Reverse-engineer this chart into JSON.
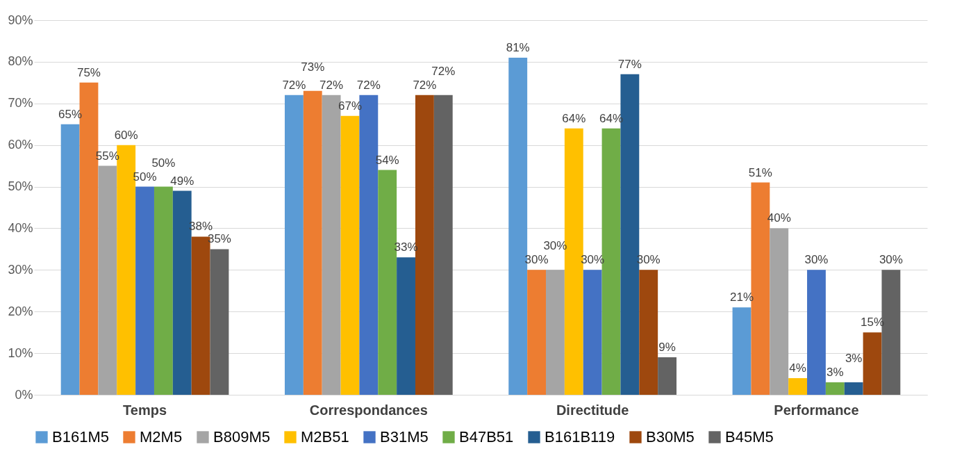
{
  "chart_data": {
    "type": "bar",
    "categories": [
      "Temps",
      "Correspondances",
      "Directitude",
      "Performance"
    ],
    "ylim": [
      0,
      90
    ],
    "yticks": [
      {
        "value": 0,
        "label": "0%"
      },
      {
        "value": 10,
        "label": "10%"
      },
      {
        "value": 20,
        "label": "20%"
      },
      {
        "value": 30,
        "label": "30%"
      },
      {
        "value": 40,
        "label": "40%"
      },
      {
        "value": 50,
        "label": "50%"
      },
      {
        "value": 60,
        "label": "60%"
      },
      {
        "value": 70,
        "label": "70%"
      },
      {
        "value": 80,
        "label": "80%"
      },
      {
        "value": 90,
        "label": "90%"
      }
    ],
    "grid": "y",
    "legend": "bottom",
    "series": [
      {
        "name": "B161M5",
        "color": "#5b9bd5",
        "values": [
          65,
          72,
          81,
          21
        ],
        "value_labels": [
          "65%",
          "72%",
          "81%",
          "21%"
        ]
      },
      {
        "name": "M2M5",
        "color": "#ed7d31",
        "values": [
          75,
          73,
          30,
          51
        ],
        "value_labels": [
          "75%",
          "73%",
          "30%",
          "51%"
        ]
      },
      {
        "name": "B809M5",
        "color": "#a5a5a5",
        "values": [
          55,
          72,
          30,
          40
        ],
        "value_labels": [
          "55%",
          "72%",
          "30%",
          "40%"
        ]
      },
      {
        "name": "M2B51",
        "color": "#ffc000",
        "values": [
          60,
          67,
          64,
          4
        ],
        "value_labels": [
          "60%",
          "67%",
          "64%",
          "4%"
        ]
      },
      {
        "name": "B31M5",
        "color": "#4472c4",
        "values": [
          50,
          72,
          30,
          30
        ],
        "value_labels": [
          "50%",
          "72%",
          "30%",
          "30%"
        ]
      },
      {
        "name": "B47B51",
        "color": "#70ad47",
        "values": [
          50,
          54,
          64,
          3
        ],
        "value_labels": [
          "50%",
          "54%",
          "64%",
          "3%"
        ]
      },
      {
        "name": "B161B119",
        "color": "#255e91",
        "values": [
          49,
          33,
          77,
          3
        ],
        "value_labels": [
          "49%",
          "33%",
          "77%",
          "3%"
        ]
      },
      {
        "name": "B30M5",
        "color": "#9e480e",
        "values": [
          38,
          72,
          30,
          15
        ],
        "value_labels": [
          "38%",
          "72%",
          "30%",
          "15%"
        ]
      },
      {
        "name": "B45M5",
        "color": "#636363",
        "values": [
          35,
          72,
          9,
          30
        ],
        "value_labels": [
          "35%",
          "72%",
          "9%",
          "30%"
        ]
      }
    ]
  }
}
